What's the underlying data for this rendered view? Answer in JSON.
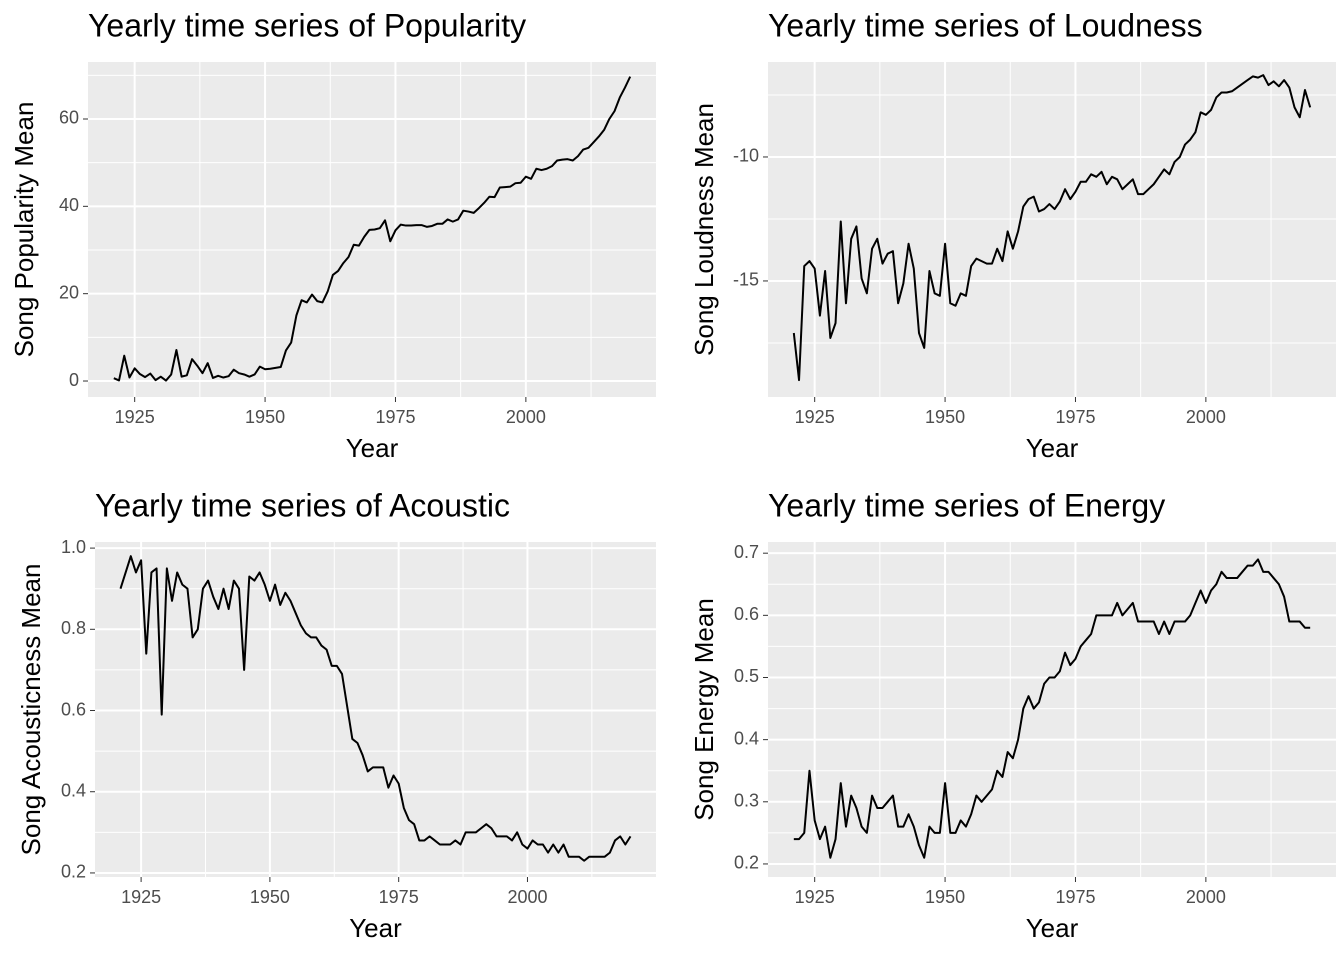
{
  "chart_data": [
    {
      "type": "line",
      "title": "Yearly time series of Popularity",
      "x_label": "Year",
      "y_label": "Song Popularity Mean",
      "color": "#000000",
      "grid": true,
      "x": [
        1921,
        1922,
        1923,
        1924,
        1925,
        1926,
        1927,
        1928,
        1929,
        1930,
        1931,
        1932,
        1933,
        1934,
        1935,
        1936,
        1937,
        1938,
        1939,
        1940,
        1941,
        1942,
        1943,
        1944,
        1945,
        1946,
        1947,
        1948,
        1949,
        1950,
        1951,
        1952,
        1953,
        1954,
        1955,
        1956,
        1957,
        1958,
        1959,
        1960,
        1961,
        1962,
        1963,
        1964,
        1965,
        1966,
        1967,
        1968,
        1969,
        1970,
        1971,
        1972,
        1973,
        1974,
        1975,
        1976,
        1977,
        1978,
        1979,
        1980,
        1981,
        1982,
        1983,
        1984,
        1985,
        1986,
        1987,
        1988,
        1989,
        1990,
        1991,
        1992,
        1993,
        1994,
        1995,
        1996,
        1997,
        1998,
        1999,
        2000,
        2001,
        2002,
        2003,
        2004,
        2005,
        2006,
        2007,
        2008,
        2009,
        2010,
        2011,
        2012,
        2013,
        2014,
        2015,
        2016,
        2017,
        2018,
        2019,
        2020
      ],
      "values": [
        0.65,
        0.14,
        5.8,
        0.8,
        2.9,
        1.6,
        0.9,
        1.7,
        0.2,
        1.0,
        0.1,
        1.5,
        7.1,
        1.0,
        1.3,
        5.0,
        3.5,
        1.8,
        4.1,
        0.7,
        1.2,
        0.8,
        1.1,
        2.6,
        1.8,
        1.5,
        1.0,
        1.5,
        3.3,
        2.7,
        2.8,
        3.0,
        3.2,
        7.0,
        8.8,
        15.0,
        18.5,
        18.0,
        19.8,
        18.3,
        18.0,
        20.5,
        24.3,
        25.2,
        27.0,
        28.4,
        31.2,
        31.0,
        33.0,
        34.6,
        34.7,
        35.0,
        36.8,
        32.0,
        34.5,
        35.8,
        35.6,
        35.6,
        35.7,
        35.7,
        35.3,
        35.5,
        36.0,
        36.0,
        37.0,
        36.5,
        37.0,
        39.0,
        38.8,
        38.5,
        39.6,
        40.8,
        42.2,
        42.1,
        44.3,
        44.4,
        44.5,
        45.3,
        45.4,
        46.8,
        46.3,
        48.6,
        48.3,
        48.6,
        49.2,
        50.5,
        50.7,
        50.8,
        50.5,
        51.5,
        53.0,
        53.4,
        54.7,
        56.0,
        57.5,
        60.0,
        61.8,
        64.9,
        67.2,
        69.7
      ],
      "xlim": [
        1916.05,
        2024.95
      ],
      "xticks": [
        1925,
        1950,
        1975,
        2000
      ],
      "ylim": [
        -3.66,
        73.05
      ],
      "yticks": [
        0,
        20,
        40,
        60
      ]
    },
    {
      "type": "line",
      "title": "Yearly time series of Loudness",
      "x_label": "Year",
      "y_label": "Song Loudness Mean",
      "color": "#000000",
      "grid": true,
      "x": [
        1921,
        1922,
        1923,
        1924,
        1925,
        1926,
        1927,
        1928,
        1929,
        1930,
        1931,
        1932,
        1933,
        1934,
        1935,
        1936,
        1937,
        1938,
        1939,
        1940,
        1941,
        1942,
        1943,
        1944,
        1945,
        1946,
        1947,
        1948,
        1949,
        1950,
        1951,
        1952,
        1953,
        1954,
        1955,
        1956,
        1957,
        1958,
        1959,
        1960,
        1961,
        1962,
        1963,
        1964,
        1965,
        1966,
        1967,
        1968,
        1969,
        1970,
        1971,
        1972,
        1973,
        1974,
        1975,
        1976,
        1977,
        1978,
        1979,
        1980,
        1981,
        1982,
        1983,
        1984,
        1985,
        1986,
        1987,
        1988,
        1989,
        1990,
        1991,
        1992,
        1993,
        1994,
        1995,
        1996,
        1997,
        1998,
        1999,
        2000,
        2001,
        2002,
        2003,
        2004,
        2005,
        2006,
        2007,
        2008,
        2009,
        2010,
        2011,
        2012,
        2013,
        2014,
        2015,
        2016,
        2017,
        2018,
        2019,
        2020
      ],
      "values": [
        -17.1,
        -19.0,
        -14.4,
        -14.2,
        -14.5,
        -16.4,
        -14.6,
        -17.3,
        -16.7,
        -12.6,
        -15.9,
        -13.3,
        -12.8,
        -14.9,
        -15.5,
        -13.7,
        -13.3,
        -14.3,
        -13.9,
        -13.8,
        -15.9,
        -15.1,
        -13.5,
        -14.5,
        -17.1,
        -17.7,
        -14.6,
        -15.5,
        -15.6,
        -13.5,
        -15.9,
        -16.0,
        -15.5,
        -15.6,
        -14.4,
        -14.1,
        -14.2,
        -14.3,
        -14.3,
        -13.7,
        -14.2,
        -13.0,
        -13.7,
        -13.0,
        -12.0,
        -11.7,
        -11.6,
        -12.2,
        -12.1,
        -11.9,
        -12.1,
        -11.8,
        -11.3,
        -11.7,
        -11.4,
        -11.0,
        -11.0,
        -10.7,
        -10.8,
        -10.6,
        -11.1,
        -10.8,
        -10.9,
        -11.3,
        -11.1,
        -10.9,
        -11.5,
        -11.5,
        -11.3,
        -11.1,
        -10.8,
        -10.5,
        -10.7,
        -10.2,
        -10.0,
        -9.5,
        -9.3,
        -9.0,
        -8.2,
        -8.3,
        -8.1,
        -7.6,
        -7.4,
        -7.4,
        -7.35,
        -7.2,
        -7.05,
        -6.9,
        -6.75,
        -6.8,
        -6.7,
        -7.1,
        -6.95,
        -7.15,
        -6.9,
        -7.2,
        -8.0,
        -8.4,
        -7.3,
        -8.0
      ],
      "xlim": [
        1916.05,
        2024.95
      ],
      "xticks": [
        1925,
        1950,
        1975,
        2000
      ],
      "ylim": [
        -19.68,
        -6.17
      ],
      "yticks": [
        -15,
        -10
      ]
    },
    {
      "type": "line",
      "title": "Yearly time series of Acoustic",
      "x_label": "Year",
      "y_label": "Song Acousticness Mean",
      "color": "#000000",
      "grid": true,
      "x": [
        1921,
        1922,
        1923,
        1924,
        1925,
        1926,
        1927,
        1928,
        1929,
        1930,
        1931,
        1932,
        1933,
        1934,
        1935,
        1936,
        1937,
        1938,
        1939,
        1940,
        1941,
        1942,
        1943,
        1944,
        1945,
        1946,
        1947,
        1948,
        1949,
        1950,
        1951,
        1952,
        1953,
        1954,
        1955,
        1956,
        1957,
        1958,
        1959,
        1960,
        1961,
        1962,
        1963,
        1964,
        1965,
        1966,
        1967,
        1968,
        1969,
        1970,
        1971,
        1972,
        1973,
        1974,
        1975,
        1976,
        1977,
        1978,
        1979,
        1980,
        1981,
        1982,
        1983,
        1984,
        1985,
        1986,
        1987,
        1988,
        1989,
        1990,
        1991,
        1992,
        1993,
        1994,
        1995,
        1996,
        1997,
        1998,
        1999,
        2000,
        2001,
        2002,
        2003,
        2004,
        2005,
        2006,
        2007,
        2008,
        2009,
        2010,
        2011,
        2012,
        2013,
        2014,
        2015,
        2016,
        2017,
        2018,
        2019,
        2020
      ],
      "values": [
        0.9,
        0.94,
        0.98,
        0.94,
        0.97,
        0.74,
        0.94,
        0.95,
        0.59,
        0.95,
        0.87,
        0.94,
        0.91,
        0.9,
        0.78,
        0.8,
        0.9,
        0.92,
        0.88,
        0.85,
        0.9,
        0.85,
        0.92,
        0.9,
        0.7,
        0.93,
        0.92,
        0.94,
        0.91,
        0.87,
        0.91,
        0.86,
        0.89,
        0.87,
        0.84,
        0.81,
        0.79,
        0.78,
        0.78,
        0.76,
        0.75,
        0.71,
        0.71,
        0.69,
        0.61,
        0.53,
        0.52,
        0.49,
        0.45,
        0.46,
        0.46,
        0.46,
        0.41,
        0.44,
        0.42,
        0.36,
        0.33,
        0.32,
        0.28,
        0.28,
        0.29,
        0.28,
        0.27,
        0.27,
        0.27,
        0.28,
        0.27,
        0.3,
        0.3,
        0.3,
        0.31,
        0.32,
        0.31,
        0.29,
        0.29,
        0.29,
        0.28,
        0.3,
        0.27,
        0.26,
        0.28,
        0.27,
        0.27,
        0.25,
        0.27,
        0.25,
        0.27,
        0.24,
        0.24,
        0.24,
        0.23,
        0.24,
        0.24,
        0.24,
        0.24,
        0.25,
        0.28,
        0.29,
        0.27,
        0.29
      ],
      "xlim": [
        1916.05,
        2024.95
      ],
      "xticks": [
        1925,
        1950,
        1975,
        2000
      ],
      "ylim": [
        0.19,
        1.015
      ],
      "yticks": [
        0.2,
        0.4,
        0.6,
        0.8,
        {
          "value": 1,
          "label": "1.0"
        }
      ]
    },
    {
      "type": "line",
      "title": "Yearly time series of Energy",
      "x_label": "Year",
      "y_label": "Song Energy Mean",
      "color": "#000000",
      "grid": true,
      "x": [
        1921,
        1922,
        1923,
        1924,
        1925,
        1926,
        1927,
        1928,
        1929,
        1930,
        1931,
        1932,
        1933,
        1934,
        1935,
        1936,
        1937,
        1938,
        1939,
        1940,
        1941,
        1942,
        1943,
        1944,
        1945,
        1946,
        1947,
        1948,
        1949,
        1950,
        1951,
        1952,
        1953,
        1954,
        1955,
        1956,
        1957,
        1958,
        1959,
        1960,
        1961,
        1962,
        1963,
        1964,
        1965,
        1966,
        1967,
        1968,
        1969,
        1970,
        1971,
        1972,
        1973,
        1974,
        1975,
        1976,
        1977,
        1978,
        1979,
        1980,
        1981,
        1982,
        1983,
        1984,
        1985,
        1986,
        1987,
        1988,
        1989,
        1990,
        1991,
        1992,
        1993,
        1994,
        1995,
        1996,
        1997,
        1998,
        1999,
        2000,
        2001,
        2002,
        2003,
        2004,
        2005,
        2006,
        2007,
        2008,
        2009,
        2010,
        2011,
        2012,
        2013,
        2014,
        2015,
        2016,
        2017,
        2018,
        2019,
        2020
      ],
      "values": [
        0.24,
        0.24,
        0.25,
        0.35,
        0.27,
        0.24,
        0.26,
        0.21,
        0.24,
        0.33,
        0.26,
        0.31,
        0.29,
        0.26,
        0.25,
        0.31,
        0.29,
        0.29,
        0.3,
        0.31,
        0.26,
        0.26,
        0.28,
        0.26,
        0.23,
        0.21,
        0.26,
        0.25,
        0.25,
        0.33,
        0.25,
        0.25,
        0.27,
        0.26,
        0.28,
        0.31,
        0.3,
        0.31,
        0.32,
        0.35,
        0.34,
        0.38,
        0.37,
        0.4,
        0.45,
        0.47,
        0.45,
        0.46,
        0.49,
        0.5,
        0.5,
        0.51,
        0.54,
        0.52,
        0.53,
        0.55,
        0.56,
        0.57,
        0.6,
        0.6,
        0.6,
        0.6,
        0.62,
        0.6,
        0.61,
        0.62,
        0.59,
        0.59,
        0.59,
        0.59,
        0.57,
        0.59,
        0.57,
        0.59,
        0.59,
        0.59,
        0.6,
        0.62,
        0.64,
        0.62,
        0.64,
        0.65,
        0.67,
        0.66,
        0.66,
        0.66,
        0.67,
        0.68,
        0.68,
        0.69,
        0.67,
        0.67,
        0.66,
        0.65,
        0.63,
        0.59,
        0.59,
        0.59,
        0.58,
        0.58
      ],
      "xlim": [
        1916.05,
        2024.95
      ],
      "xticks": [
        1925,
        1950,
        1975,
        2000
      ],
      "ylim": [
        0.179,
        0.718
      ],
      "yticks": [
        0.2,
        0.3,
        0.4,
        0.5,
        0.6,
        0.7
      ]
    }
  ]
}
